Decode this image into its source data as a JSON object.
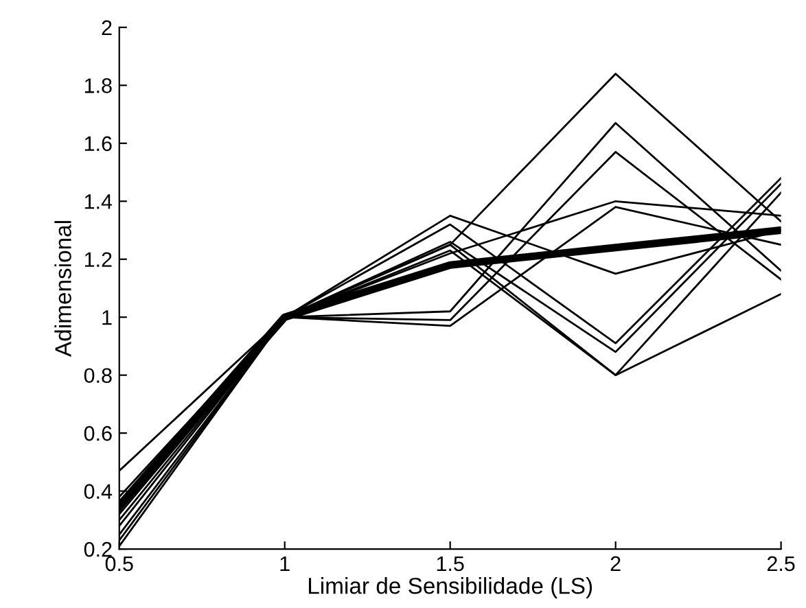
{
  "chart_data": {
    "type": "line",
    "xlabel": "Limiar de Sensibilidade (LS)",
    "ylabel": "Adimensional",
    "x": [
      0.5,
      1,
      1.5,
      2,
      2.5
    ],
    "xlim": [
      0.5,
      2.5
    ],
    "xticks": [
      0.5,
      1,
      1.5,
      2,
      2.5
    ],
    "ylim": [
      0.2,
      2
    ],
    "yticks": [
      0.2,
      0.4,
      0.6,
      0.8,
      1,
      1.2,
      1.4,
      1.6,
      1.8,
      2
    ],
    "grid": false,
    "legend": false,
    "marker": "none",
    "line_style": "solid",
    "series": [
      {
        "color": "#000000",
        "values": [
          0.47,
          1,
          1.25,
          1.84,
          1.33
        ]
      },
      {
        "color": "#000000",
        "values": [
          0.36,
          1,
          1.02,
          1.67,
          1.16
        ]
      },
      {
        "color": "#000000",
        "values": [
          0.33,
          1,
          0.99,
          1.57,
          1.13
        ]
      },
      {
        "color": "#000000",
        "values": [
          0.3,
          1,
          1.22,
          1.4,
          1.35
        ]
      },
      {
        "color": "#000000",
        "values": [
          0.28,
          1,
          0.97,
          1.38,
          1.25
        ]
      },
      {
        "color": "#000000",
        "values": [
          0.38,
          1,
          1.35,
          1.15,
          1.3
        ]
      },
      {
        "color": "#000000",
        "values": [
          0.25,
          1,
          1.32,
          0.91,
          1.48
        ]
      },
      {
        "color": "#000000",
        "values": [
          0.32,
          1,
          1.26,
          0.88,
          1.46
        ]
      },
      {
        "color": "#000000",
        "values": [
          0.23,
          1,
          1.25,
          0.8,
          1.43
        ]
      },
      {
        "color": "#000000",
        "values": [
          0.21,
          1,
          1.23,
          0.8,
          1.08
        ]
      },
      {
        "color": "#000000",
        "values": [
          0.35,
          1,
          1.18,
          1.24,
          1.3
        ]
      }
    ]
  }
}
